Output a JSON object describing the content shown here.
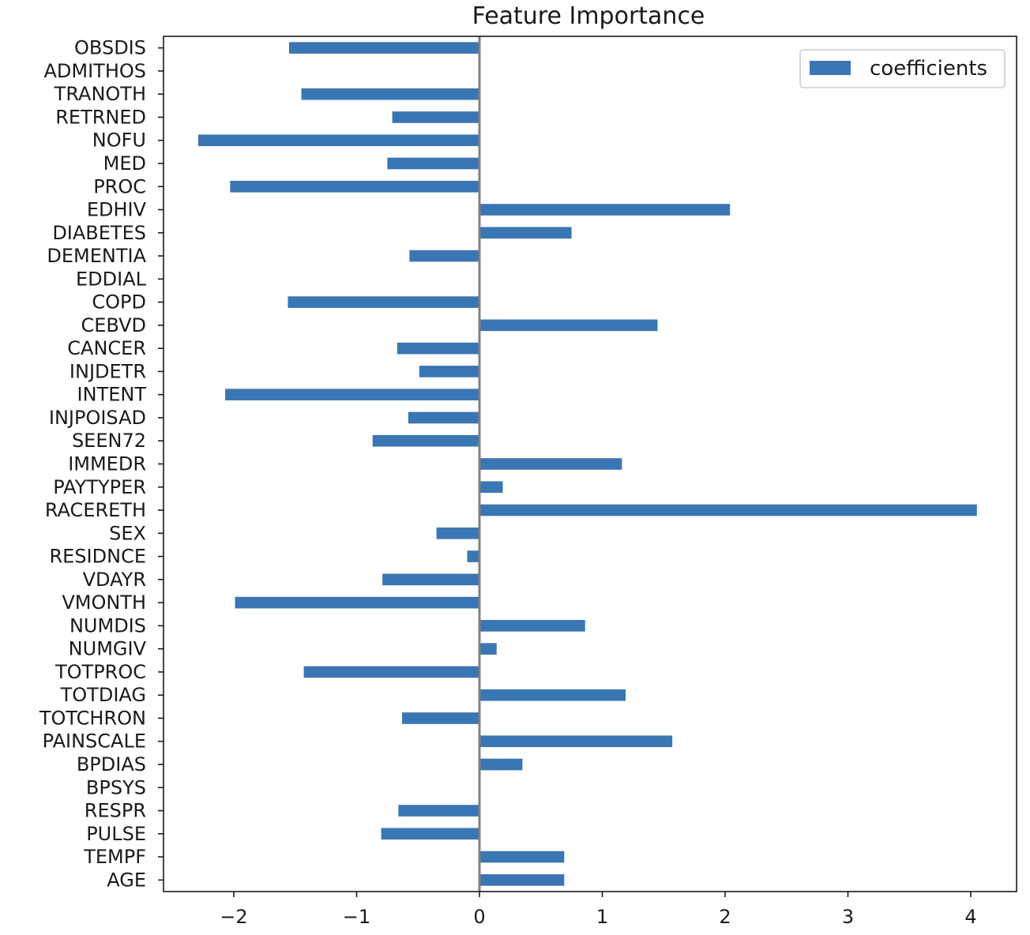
{
  "chart_data": {
    "type": "bar",
    "orientation": "horizontal",
    "title": "Feature Importance",
    "xlabel": "",
    "ylabel": "",
    "categories": [
      "AGE",
      "TEMPF",
      "PULSE",
      "RESPR",
      "BPSYS",
      "BPDIAS",
      "PAINSCALE",
      "TOTCHRON",
      "TOTDIAG",
      "TOTPROC",
      "NUMGIV",
      "NUMDIS",
      "VMONTH",
      "VDAYR",
      "RESIDNCE",
      "SEX",
      "RACERETH",
      "PAYTYPER",
      "IMMEDR",
      "SEEN72",
      "INJPOISAD",
      "INTENT",
      "INJDETR",
      "CANCER",
      "CEBVD",
      "COPD",
      "EDDIAL",
      "DEMENTIA",
      "DIABETES",
      "EDHIV",
      "PROC",
      "MED",
      "NOFU",
      "RETRNED",
      "TRANOTH",
      "ADMITHOS",
      "OBSDIS"
    ],
    "series": [
      {
        "name": "coefficients",
        "color": "#3a76b3",
        "values": [
          0.69,
          0.69,
          -0.8,
          -0.66,
          0.0,
          0.35,
          1.57,
          -0.63,
          1.19,
          -1.43,
          0.14,
          0.86,
          -1.99,
          -0.79,
          -0.1,
          -0.35,
          4.05,
          0.19,
          1.16,
          -0.87,
          -0.58,
          -2.07,
          -0.49,
          -0.67,
          1.45,
          -1.56,
          0.0,
          -0.57,
          0.75,
          2.04,
          -2.03,
          -0.75,
          -2.29,
          -0.71,
          -1.45,
          0.0,
          -1.55
        ]
      }
    ],
    "xlim": [
      -2.6,
      4.4
    ],
    "xticks": [
      -2,
      -1,
      0,
      1,
      2,
      3,
      4
    ],
    "xtick_labels": [
      "−2",
      "−1",
      "0",
      "1",
      "2",
      "3",
      "4"
    ],
    "zero_line_color": "#808080",
    "grid": false,
    "legend": {
      "position": "top-right",
      "label": "coefficients"
    }
  }
}
